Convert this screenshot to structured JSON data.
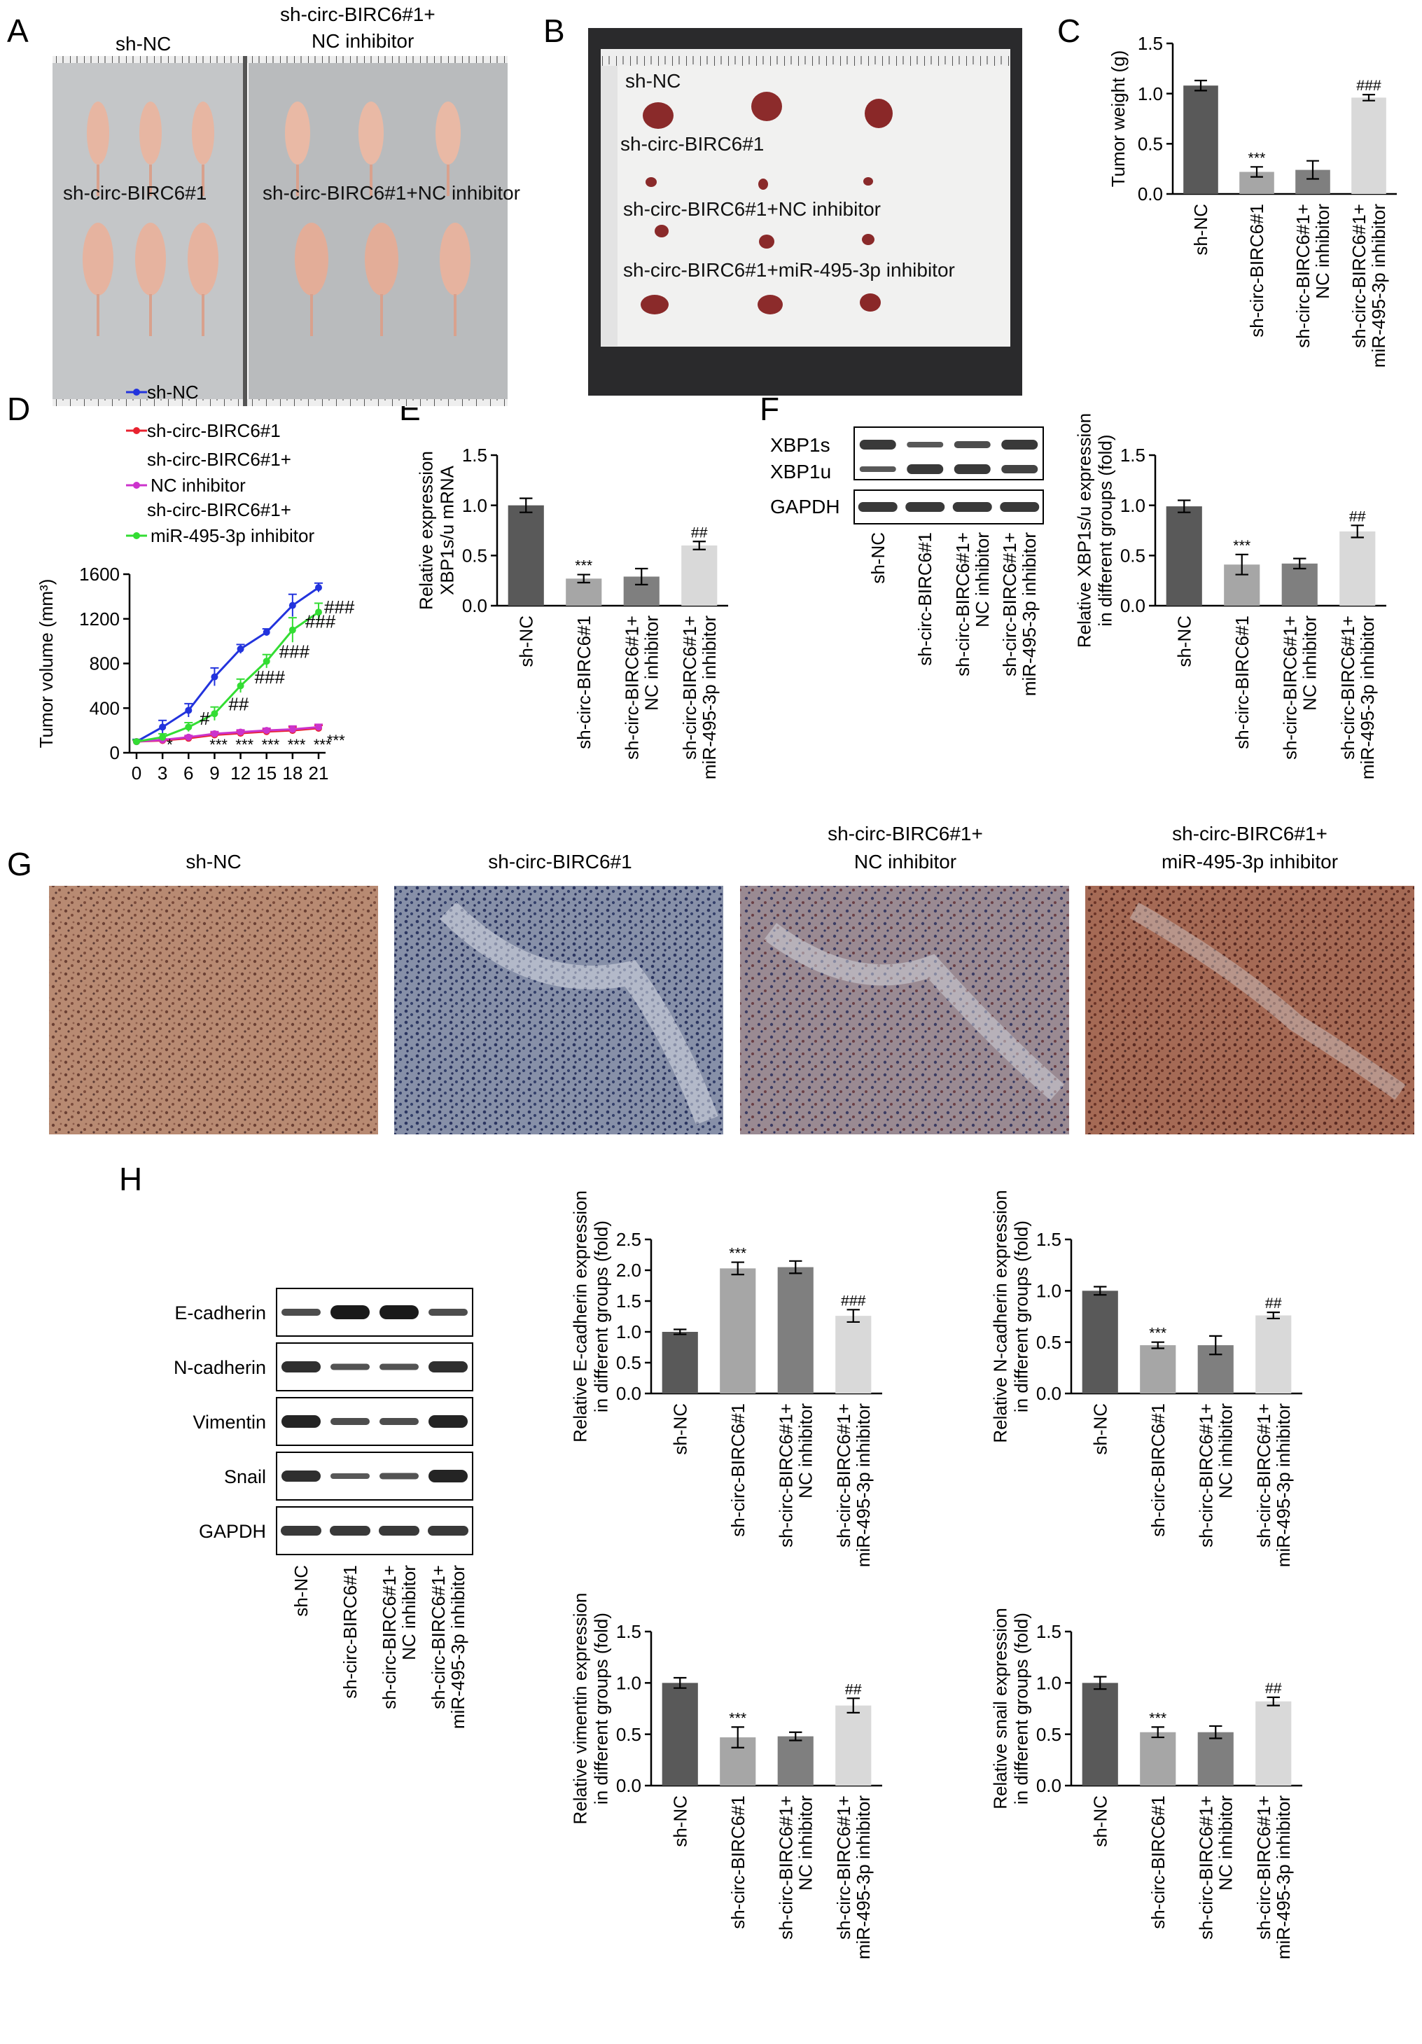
{
  "panels": {
    "A": "A",
    "B": "B",
    "C": "C",
    "D": "D",
    "E": "E",
    "F": "F",
    "G": "G",
    "H": "H"
  },
  "groups": {
    "g1": "sh-NC",
    "g2": "sh-circ-BIRC6#1",
    "g3a": "sh-circ-BIRC6#1+",
    "g3b": "NC inhibitor",
    "g4a": "sh-circ-BIRC6#1+",
    "g4b": "miR-495-3p inhibitor"
  },
  "panelA": {
    "top_left": "sh-NC",
    "top_right_1": "sh-circ-BIRC6#1+",
    "top_right_2": "NC inhibitor",
    "mid_left": "sh-circ-BIRC6#1",
    "mid_right": "sh-circ-BIRC6#1+NC inhibitor"
  },
  "panelB": {
    "l1": "sh-NC",
    "l2": "sh-circ-BIRC6#1",
    "l3": "sh-circ-BIRC6#1+NC inhibitor",
    "l4": "sh-circ-BIRC6#1+miR-495-3p inhibitor"
  },
  "panelF_blot": {
    "r1": "XBP1s",
    "r2": "XBP1u",
    "r3": "GAPDH"
  },
  "panelH_blot": {
    "r1": "E-cadherin",
    "r2": "N-cadherin",
    "r3": "Vimentin",
    "r4": "Snail",
    "r5": "GAPDH"
  },
  "panelG": {
    "c1": "sh-NC",
    "c2": "sh-circ-BIRC6#1",
    "c3a": "sh-circ-BIRC6#1+",
    "c3b": "NC inhibitor",
    "c4a": "sh-circ-BIRC6#1+",
    "c4b": "miR-495-3p inhibitor"
  },
  "colors": {
    "g1": "#595959",
    "g2": "#a6a6a6",
    "g3": "#7f7f7f",
    "g4": "#d9d9d9",
    "line1": "#2233dd",
    "line2": "#e8222f",
    "line3": "#cc33cc",
    "line4": "#33dd33"
  },
  "chart_data": [
    {
      "id": "C",
      "type": "bar",
      "ylabel": "Tumor weight (g)",
      "ylabel2": "",
      "ylim": [
        0,
        1.5
      ],
      "yticks": [
        "0.0",
        "0.5",
        "1.0",
        "1.5"
      ],
      "values": [
        1.08,
        0.22,
        0.24,
        0.96
      ],
      "errors": [
        0.05,
        0.05,
        0.09,
        0.03
      ],
      "sig": [
        "",
        "***",
        "",
        "###"
      ]
    },
    {
      "id": "E",
      "type": "bar",
      "ylabel": "Relative expression",
      "ylabel2": "XBP1s/u mRNA",
      "ylim": [
        0,
        1.5
      ],
      "yticks": [
        "0.0",
        "0.5",
        "1.0",
        "1.5"
      ],
      "values": [
        1.0,
        0.27,
        0.29,
        0.6
      ],
      "errors": [
        0.07,
        0.04,
        0.08,
        0.04
      ],
      "sig": [
        "",
        "***",
        "",
        "##"
      ]
    },
    {
      "id": "F",
      "type": "bar",
      "ylabel": "Relative XBP1s/u expression",
      "ylabel2": "in different groups (fold)",
      "ylim": [
        0,
        1.5
      ],
      "yticks": [
        "0.0",
        "0.5",
        "1.0",
        "1.5"
      ],
      "values": [
        0.99,
        0.41,
        0.42,
        0.74
      ],
      "errors": [
        0.06,
        0.1,
        0.05,
        0.06
      ],
      "sig": [
        "",
        "***",
        "",
        "##"
      ]
    },
    {
      "id": "Ecad",
      "type": "bar",
      "ylabel": "Relative E-cadherin expression",
      "ylabel2": "in different groups (fold)",
      "ylim": [
        0,
        2.5
      ],
      "yticks": [
        "0.0",
        "0.5",
        "1.0",
        "1.5",
        "2.0",
        "2.5"
      ],
      "values": [
        1.0,
        2.03,
        2.05,
        1.26
      ],
      "errors": [
        0.04,
        0.1,
        0.1,
        0.1
      ],
      "sig": [
        "",
        "***",
        "",
        "###"
      ]
    },
    {
      "id": "Ncad",
      "type": "bar",
      "ylabel": "Relative N-cadherin expression",
      "ylabel2": "in different groups (fold)",
      "ylim": [
        0,
        1.5
      ],
      "yticks": [
        "0.0",
        "0.5",
        "1.0",
        "1.5"
      ],
      "values": [
        1.0,
        0.47,
        0.47,
        0.76
      ],
      "errors": [
        0.04,
        0.03,
        0.09,
        0.03
      ],
      "sig": [
        "",
        "***",
        "",
        "##"
      ]
    },
    {
      "id": "Vim",
      "type": "bar",
      "ylabel": "Relative vimentin expression",
      "ylabel2": "in different groups (fold)",
      "ylim": [
        0,
        1.5
      ],
      "yticks": [
        "0.0",
        "0.5",
        "1.0",
        "1.5"
      ],
      "values": [
        1.0,
        0.47,
        0.48,
        0.78
      ],
      "errors": [
        0.05,
        0.1,
        0.04,
        0.07
      ],
      "sig": [
        "",
        "***",
        "",
        "##"
      ]
    },
    {
      "id": "Snail",
      "type": "bar",
      "ylabel": "Relative snail expression",
      "ylabel2": "in different groups (fold)",
      "ylim": [
        0,
        1.5
      ],
      "yticks": [
        "0.0",
        "0.5",
        "1.0",
        "1.5"
      ],
      "values": [
        1.0,
        0.52,
        0.52,
        0.82
      ],
      "errors": [
        0.06,
        0.05,
        0.06,
        0.04
      ],
      "sig": [
        "",
        "***",
        "",
        "##"
      ]
    },
    {
      "id": "D",
      "type": "line",
      "ylabel": "Tumor volume (mm³)",
      "x": [
        0,
        3,
        6,
        9,
        12,
        15,
        18,
        21
      ],
      "xticks": [
        "0",
        "3",
        "6",
        "9",
        "12",
        "15",
        "18",
        "21"
      ],
      "ylim": [
        0,
        1600
      ],
      "yticks": [
        "0",
        "400",
        "800",
        "1200",
        "1600"
      ],
      "legend": [
        "sh-NC",
        "sh-circ-BIRC6#1",
        "sh-circ-BIRC6#1+",
        "NC inhibitor",
        "sh-circ-BIRC6#1+",
        "miR-495-3p inhibitor"
      ],
      "series": [
        {
          "name": "sh-NC",
          "values": [
            100,
            230,
            380,
            680,
            930,
            1080,
            1320,
            1480
          ],
          "errors": [
            20,
            60,
            60,
            80,
            40,
            30,
            100,
            40
          ]
        },
        {
          "name": "sh-circ-BIRC6#1",
          "values": [
            100,
            110,
            130,
            160,
            175,
            190,
            200,
            220
          ],
          "errors": [
            10,
            10,
            15,
            20,
            20,
            20,
            30,
            25
          ]
        },
        {
          "name": "NC inhibitor",
          "values": [
            100,
            115,
            140,
            170,
            185,
            200,
            210,
            230
          ],
          "errors": [
            10,
            10,
            15,
            20,
            20,
            20,
            30,
            25
          ]
        },
        {
          "name": "miR-495-3p inhibitor",
          "values": [
            100,
            140,
            230,
            350,
            600,
            820,
            1100,
            1260
          ],
          "errors": [
            15,
            30,
            40,
            60,
            60,
            60,
            110,
            80
          ]
        }
      ],
      "annotations": [
        "*",
        "#",
        "***",
        "##",
        "***",
        "###",
        "***",
        "###",
        "***",
        "###",
        "***",
        "###",
        "***"
      ]
    }
  ]
}
